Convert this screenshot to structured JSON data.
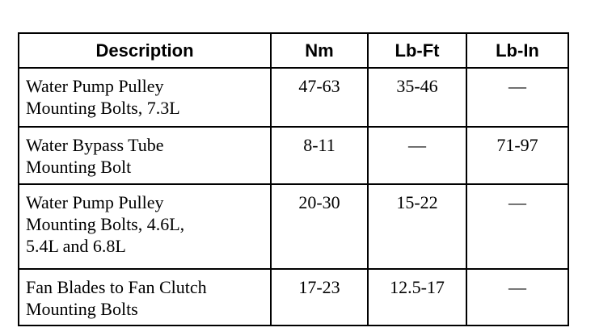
{
  "table": {
    "header": [
      "Description",
      "Nm",
      "Lb-Ft",
      "Lb-In"
    ],
    "rows": [
      [
        [
          "Water Pump Pulley",
          "Mounting Bolts, 7.3L"
        ],
        "47-63",
        "35-46",
        "—"
      ],
      [
        [
          "Water Bypass Tube",
          "Mounting Bolt"
        ],
        "8-11",
        "—",
        "71-97"
      ],
      [
        [
          "Water Pump Pulley",
          "Mounting Bolts, 4.6L,",
          "5.4L and 6.8L"
        ],
        "20-30",
        "15-22",
        "—"
      ],
      [
        [
          "Fan Blades to Fan Clutch",
          "Mounting Bolts"
        ],
        "17-23",
        "12.5-17",
        "—"
      ]
    ]
  }
}
